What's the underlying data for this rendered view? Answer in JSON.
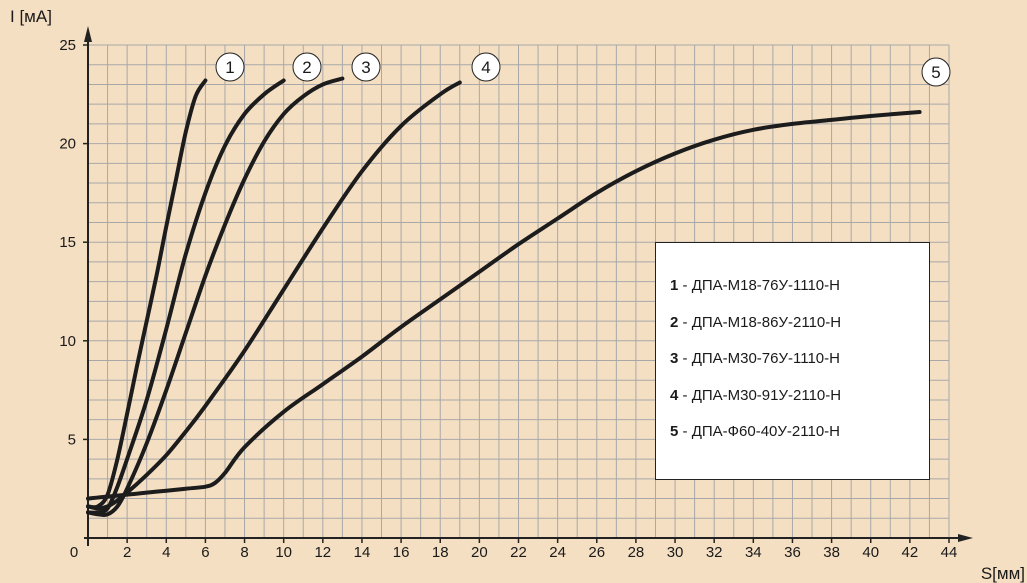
{
  "chart_data": {
    "type": "line",
    "xlabel": "S[мм]",
    "ylabel": "I [мА]",
    "xlim": [
      0,
      44
    ],
    "ylim": [
      0,
      25
    ],
    "xticks": [
      0,
      2,
      4,
      6,
      8,
      10,
      12,
      14,
      16,
      18,
      20,
      22,
      24,
      26,
      28,
      30,
      32,
      34,
      36,
      38,
      40,
      42,
      44
    ],
    "yticks": [
      5,
      10,
      15,
      20,
      25
    ],
    "grid": true,
    "grid_minor_step_x": 1,
    "grid_minor_step_y": 1,
    "legend_position": "right",
    "line_color": "#1c1c1c",
    "grid_color": "#a8a8a8",
    "background": "#f5dfc3",
    "series": [
      {
        "label": "1",
        "name": "ДПА-М18-76У-1110-Н",
        "x": [
          0,
          0.5,
          1.0,
          1.5,
          2.0,
          2.5,
          3.0,
          3.5,
          4.0,
          4.5,
          5.0,
          5.5,
          6.0
        ],
        "y": [
          1.6,
          1.6,
          2.2,
          4.0,
          6.3,
          8.7,
          11.0,
          13.3,
          15.8,
          18.2,
          20.6,
          22.4,
          23.2
        ]
      },
      {
        "label": "2",
        "name": "ДПА-М18-86У-2110-Н",
        "x": [
          0,
          0.5,
          1.0,
          1.5,
          2.0,
          3.0,
          4.0,
          5.0,
          6.0,
          7.0,
          8.0,
          9.0,
          10.0
        ],
        "y": [
          1.3,
          1.3,
          1.5,
          2.6,
          4.0,
          7.0,
          10.6,
          14.4,
          17.5,
          19.9,
          21.5,
          22.5,
          23.2
        ]
      },
      {
        "label": "3",
        "name": "ДПА-М30-76У-1110-Н",
        "x": [
          0,
          0.5,
          1.0,
          1.5,
          2.0,
          3.0,
          4.0,
          5.0,
          6.0,
          7.0,
          8.0,
          9.0,
          10.0,
          11.0,
          12.0,
          13.0
        ],
        "y": [
          1.3,
          1.2,
          1.2,
          1.6,
          2.5,
          4.8,
          7.5,
          10.4,
          13.3,
          15.9,
          18.2,
          20.1,
          21.5,
          22.4,
          23.0,
          23.3
        ]
      },
      {
        "label": "4",
        "name": "ДПА-М30-91У-2110-Н",
        "x": [
          0,
          0.5,
          1.0,
          1.5,
          2.0,
          3.0,
          4.0,
          5.0,
          6.0,
          8.0,
          10.0,
          12.0,
          14.0,
          16.0,
          18.0,
          19.0
        ],
        "y": [
          1.6,
          1.5,
          1.6,
          1.9,
          2.3,
          3.2,
          4.2,
          5.4,
          6.7,
          9.5,
          12.6,
          15.7,
          18.6,
          20.9,
          22.5,
          23.1
        ]
      },
      {
        "label": "5",
        "name": "ДПА-Ф60-40У-2110-Н",
        "x": [
          0,
          1.0,
          2.0,
          3.0,
          4.0,
          5.0,
          6.0,
          6.5,
          7.0,
          8.0,
          10.0,
          12.0,
          14.0,
          16.0,
          18.0,
          20.0,
          22.0,
          24.0,
          26.0,
          28.0,
          30.0,
          32.0,
          34.0,
          36.0,
          38.0,
          40.0,
          42.5
        ],
        "y": [
          2.0,
          2.1,
          2.2,
          2.3,
          2.4,
          2.5,
          2.6,
          2.8,
          3.3,
          4.6,
          6.4,
          7.8,
          9.2,
          10.7,
          12.1,
          13.5,
          14.9,
          16.2,
          17.5,
          18.6,
          19.5,
          20.2,
          20.7,
          21.0,
          21.2,
          21.4,
          21.6
        ]
      }
    ]
  },
  "legend": {
    "items": [
      {
        "num": "1",
        "sep": " - ",
        "name": "ДПА-М18-76У-1110-Н"
      },
      {
        "num": "2",
        "sep": " - ",
        "name": "ДПА-М18-86У-2110-Н"
      },
      {
        "num": "3",
        "sep": " - ",
        "name": "ДПА-М30-76У-1110-Н"
      },
      {
        "num": "4",
        "sep": " - ",
        "name": "ДПА-М30-91У-2110-Н"
      },
      {
        "num": "5",
        "sep": " - ",
        "name": "ДПА-Ф60-40У-2110-Н"
      }
    ]
  }
}
